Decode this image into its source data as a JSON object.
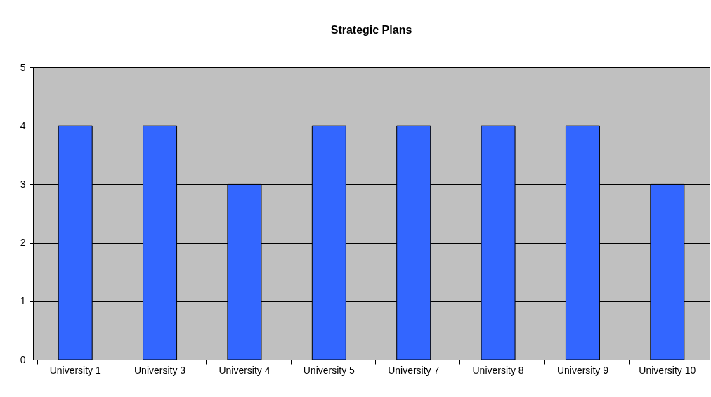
{
  "chart_data": {
    "type": "bar",
    "title": "Strategic Plans",
    "categories": [
      "University 1",
      "University 3",
      "University 4",
      "University 5",
      "University 7",
      "University 8",
      "University 9",
      "University 10"
    ],
    "values": [
      4,
      4,
      3,
      4,
      4,
      4,
      4,
      3
    ],
    "color": "#3366ff",
    "ylim": [
      0,
      5
    ],
    "yticks": [
      0,
      1,
      2,
      3,
      4,
      5
    ],
    "grid": "y"
  }
}
